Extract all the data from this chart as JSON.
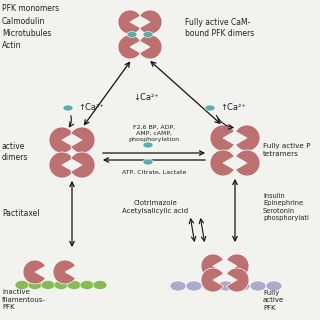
{
  "bg_color": "#f2f2ee",
  "pfk_color": "#bc7070",
  "cam_color": "#5aaeae",
  "actin_color": "#88bb55",
  "tubulin_color": "#aaaacc",
  "text_color": "#222222",
  "arrow_color": "#111111",
  "labels": {
    "top_left": "PFK monomers\nCalmodulin\nMicrotubules\nActin",
    "top_center": "Fully active CaM-\nbound PFK dimers",
    "mid_left_ca": "↑Ca²⁺",
    "mid_center_ca": "↓Ca²⁺",
    "mid_right_ca": "↑Ca²⁺",
    "mid_left_label": "active\ndimers",
    "mid_right_label": "Fully active P\ntetramers",
    "mid_center_activators": "F2,6 BP, ADP,\nAMP, cAMP,\nphosphorylation",
    "mid_center_inhibitors": "ATP, Citrate, Lactate",
    "bot_left_drug": "Pactitaxel",
    "bot_center_drug": "Clotrimazole\nAcetylsalicylic acid",
    "bot_right_drug": "Insulin\nEpinephrine\nSerotonin\nphosphorylati",
    "bot_left_label": "inactive\nfilamentous-\nPFK",
    "bot_right_label": "Fully\nactive\nPFK"
  }
}
